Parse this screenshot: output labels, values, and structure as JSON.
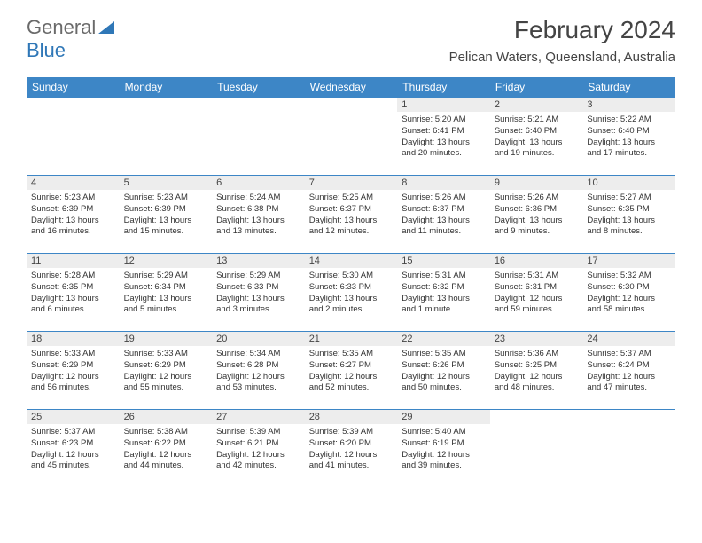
{
  "logo": {
    "part1": "General",
    "part2": "Blue"
  },
  "title": "February 2024",
  "location": "Pelican Waters, Queensland, Australia",
  "colors": {
    "header_bg": "#3d86c6",
    "header_text": "#ffffff",
    "daynum_bg": "#ededed",
    "border": "#3d86c6",
    "logo_gray": "#6a6a6a",
    "logo_blue": "#2f77b7"
  },
  "day_headers": [
    "Sunday",
    "Monday",
    "Tuesday",
    "Wednesday",
    "Thursday",
    "Friday",
    "Saturday"
  ],
  "weeks": [
    [
      {
        "num": "",
        "sunrise": "",
        "sunset": "",
        "daylight": "",
        "empty": true
      },
      {
        "num": "",
        "sunrise": "",
        "sunset": "",
        "daylight": "",
        "empty": true
      },
      {
        "num": "",
        "sunrise": "",
        "sunset": "",
        "daylight": "",
        "empty": true
      },
      {
        "num": "",
        "sunrise": "",
        "sunset": "",
        "daylight": "",
        "empty": true
      },
      {
        "num": "1",
        "sunrise": "Sunrise: 5:20 AM",
        "sunset": "Sunset: 6:41 PM",
        "daylight": "Daylight: 13 hours and 20 minutes."
      },
      {
        "num": "2",
        "sunrise": "Sunrise: 5:21 AM",
        "sunset": "Sunset: 6:40 PM",
        "daylight": "Daylight: 13 hours and 19 minutes."
      },
      {
        "num": "3",
        "sunrise": "Sunrise: 5:22 AM",
        "sunset": "Sunset: 6:40 PM",
        "daylight": "Daylight: 13 hours and 17 minutes."
      }
    ],
    [
      {
        "num": "4",
        "sunrise": "Sunrise: 5:23 AM",
        "sunset": "Sunset: 6:39 PM",
        "daylight": "Daylight: 13 hours and 16 minutes."
      },
      {
        "num": "5",
        "sunrise": "Sunrise: 5:23 AM",
        "sunset": "Sunset: 6:39 PM",
        "daylight": "Daylight: 13 hours and 15 minutes."
      },
      {
        "num": "6",
        "sunrise": "Sunrise: 5:24 AM",
        "sunset": "Sunset: 6:38 PM",
        "daylight": "Daylight: 13 hours and 13 minutes."
      },
      {
        "num": "7",
        "sunrise": "Sunrise: 5:25 AM",
        "sunset": "Sunset: 6:37 PM",
        "daylight": "Daylight: 13 hours and 12 minutes."
      },
      {
        "num": "8",
        "sunrise": "Sunrise: 5:26 AM",
        "sunset": "Sunset: 6:37 PM",
        "daylight": "Daylight: 13 hours and 11 minutes."
      },
      {
        "num": "9",
        "sunrise": "Sunrise: 5:26 AM",
        "sunset": "Sunset: 6:36 PM",
        "daylight": "Daylight: 13 hours and 9 minutes."
      },
      {
        "num": "10",
        "sunrise": "Sunrise: 5:27 AM",
        "sunset": "Sunset: 6:35 PM",
        "daylight": "Daylight: 13 hours and 8 minutes."
      }
    ],
    [
      {
        "num": "11",
        "sunrise": "Sunrise: 5:28 AM",
        "sunset": "Sunset: 6:35 PM",
        "daylight": "Daylight: 13 hours and 6 minutes."
      },
      {
        "num": "12",
        "sunrise": "Sunrise: 5:29 AM",
        "sunset": "Sunset: 6:34 PM",
        "daylight": "Daylight: 13 hours and 5 minutes."
      },
      {
        "num": "13",
        "sunrise": "Sunrise: 5:29 AM",
        "sunset": "Sunset: 6:33 PM",
        "daylight": "Daylight: 13 hours and 3 minutes."
      },
      {
        "num": "14",
        "sunrise": "Sunrise: 5:30 AM",
        "sunset": "Sunset: 6:33 PM",
        "daylight": "Daylight: 13 hours and 2 minutes."
      },
      {
        "num": "15",
        "sunrise": "Sunrise: 5:31 AM",
        "sunset": "Sunset: 6:32 PM",
        "daylight": "Daylight: 13 hours and 1 minute."
      },
      {
        "num": "16",
        "sunrise": "Sunrise: 5:31 AM",
        "sunset": "Sunset: 6:31 PM",
        "daylight": "Daylight: 12 hours and 59 minutes."
      },
      {
        "num": "17",
        "sunrise": "Sunrise: 5:32 AM",
        "sunset": "Sunset: 6:30 PM",
        "daylight": "Daylight: 12 hours and 58 minutes."
      }
    ],
    [
      {
        "num": "18",
        "sunrise": "Sunrise: 5:33 AM",
        "sunset": "Sunset: 6:29 PM",
        "daylight": "Daylight: 12 hours and 56 minutes."
      },
      {
        "num": "19",
        "sunrise": "Sunrise: 5:33 AM",
        "sunset": "Sunset: 6:29 PM",
        "daylight": "Daylight: 12 hours and 55 minutes."
      },
      {
        "num": "20",
        "sunrise": "Sunrise: 5:34 AM",
        "sunset": "Sunset: 6:28 PM",
        "daylight": "Daylight: 12 hours and 53 minutes."
      },
      {
        "num": "21",
        "sunrise": "Sunrise: 5:35 AM",
        "sunset": "Sunset: 6:27 PM",
        "daylight": "Daylight: 12 hours and 52 minutes."
      },
      {
        "num": "22",
        "sunrise": "Sunrise: 5:35 AM",
        "sunset": "Sunset: 6:26 PM",
        "daylight": "Daylight: 12 hours and 50 minutes."
      },
      {
        "num": "23",
        "sunrise": "Sunrise: 5:36 AM",
        "sunset": "Sunset: 6:25 PM",
        "daylight": "Daylight: 12 hours and 48 minutes."
      },
      {
        "num": "24",
        "sunrise": "Sunrise: 5:37 AM",
        "sunset": "Sunset: 6:24 PM",
        "daylight": "Daylight: 12 hours and 47 minutes."
      }
    ],
    [
      {
        "num": "25",
        "sunrise": "Sunrise: 5:37 AM",
        "sunset": "Sunset: 6:23 PM",
        "daylight": "Daylight: 12 hours and 45 minutes."
      },
      {
        "num": "26",
        "sunrise": "Sunrise: 5:38 AM",
        "sunset": "Sunset: 6:22 PM",
        "daylight": "Daylight: 12 hours and 44 minutes."
      },
      {
        "num": "27",
        "sunrise": "Sunrise: 5:39 AM",
        "sunset": "Sunset: 6:21 PM",
        "daylight": "Daylight: 12 hours and 42 minutes."
      },
      {
        "num": "28",
        "sunrise": "Sunrise: 5:39 AM",
        "sunset": "Sunset: 6:20 PM",
        "daylight": "Daylight: 12 hours and 41 minutes."
      },
      {
        "num": "29",
        "sunrise": "Sunrise: 5:40 AM",
        "sunset": "Sunset: 6:19 PM",
        "daylight": "Daylight: 12 hours and 39 minutes."
      },
      {
        "num": "",
        "sunrise": "",
        "sunset": "",
        "daylight": "",
        "empty": true
      },
      {
        "num": "",
        "sunrise": "",
        "sunset": "",
        "daylight": "",
        "empty": true
      }
    ]
  ]
}
